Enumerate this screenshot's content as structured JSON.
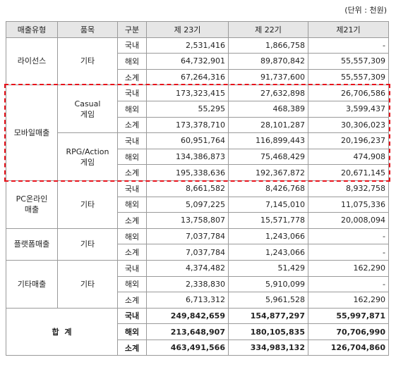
{
  "unit_note": "(단위 : 천원)",
  "headers": [
    "매출유형",
    "품목",
    "구분",
    "제 23기",
    "제 22기",
    "제21기"
  ],
  "groups": [
    {
      "category": [
        "라이선스"
      ],
      "items": [
        {
          "name": [
            "기타"
          ],
          "rows": [
            {
              "div": "국내",
              "v": [
                "2,531,416",
                "1,866,758",
                "-"
              ]
            },
            {
              "div": "해외",
              "v": [
                "64,732,901",
                "89,870,842",
                "55,557,309"
              ]
            },
            {
              "div": "소계",
              "v": [
                "67,264,316",
                "91,737,600",
                "55,557,309"
              ]
            }
          ]
        }
      ]
    },
    {
      "category": [
        "모바일매출"
      ],
      "items": [
        {
          "name": [
            "Casual",
            "게임"
          ],
          "rows": [
            {
              "div": "국내",
              "v": [
                "173,323,415",
                "27,632,898",
                "26,706,586"
              ]
            },
            {
              "div": "해외",
              "v": [
                "55,295",
                "468,389",
                "3,599,437"
              ]
            },
            {
              "div": "소계",
              "v": [
                "173,378,710",
                "28,101,287",
                "30,306,023"
              ]
            }
          ]
        },
        {
          "name": [
            "RPG/Action",
            "게임"
          ],
          "rows": [
            {
              "div": "국내",
              "v": [
                "60,951,764",
                "116,899,443",
                "20,196,237"
              ]
            },
            {
              "div": "해외",
              "v": [
                "134,386,873",
                "75,468,429",
                "474,908"
              ]
            },
            {
              "div": "소계",
              "v": [
                "195,338,636",
                "192,367,872",
                "20,671,145"
              ]
            }
          ]
        }
      ]
    },
    {
      "category": [
        "PC온라인",
        "매출"
      ],
      "items": [
        {
          "name": [
            "기타"
          ],
          "rows": [
            {
              "div": "국내",
              "v": [
                "8,661,582",
                "8,426,768",
                "8,932,758"
              ]
            },
            {
              "div": "해외",
              "v": [
                "5,097,225",
                "7,145,010",
                "11,075,336"
              ]
            },
            {
              "div": "소계",
              "v": [
                "13,758,807",
                "15,571,778",
                "20,008,094"
              ]
            }
          ]
        }
      ]
    },
    {
      "category": [
        "플랫폼매출"
      ],
      "items": [
        {
          "name": [
            "기타"
          ],
          "rows": [
            {
              "div": "해외",
              "v": [
                "7,037,784",
                "1,243,066",
                "-"
              ]
            },
            {
              "div": "소계",
              "v": [
                "7,037,784",
                "1,243,066",
                "-"
              ]
            }
          ]
        }
      ]
    },
    {
      "category": [
        "기타매출"
      ],
      "items": [
        {
          "name": [
            "기타"
          ],
          "rows": [
            {
              "div": "국내",
              "v": [
                "4,374,482",
                "51,429",
                "162,290"
              ]
            },
            {
              "div": "해외",
              "v": [
                "2,338,830",
                "5,910,099",
                "-"
              ]
            },
            {
              "div": "소계",
              "v": [
                "6,713,312",
                "5,961,528",
                "162,290"
              ]
            }
          ]
        }
      ]
    }
  ],
  "total": {
    "label": "합  계",
    "rows": [
      {
        "div": "국내",
        "v": [
          "249,842,659",
          "154,877,297",
          "55,997,871"
        ]
      },
      {
        "div": "해외",
        "v": [
          "213,648,907",
          "180,105,835",
          "70,706,990"
        ]
      },
      {
        "div": "소계",
        "v": [
          "463,491,566",
          "334,983,132",
          "126,704,860"
        ]
      }
    ]
  },
  "highlight_color": "#e8121b"
}
